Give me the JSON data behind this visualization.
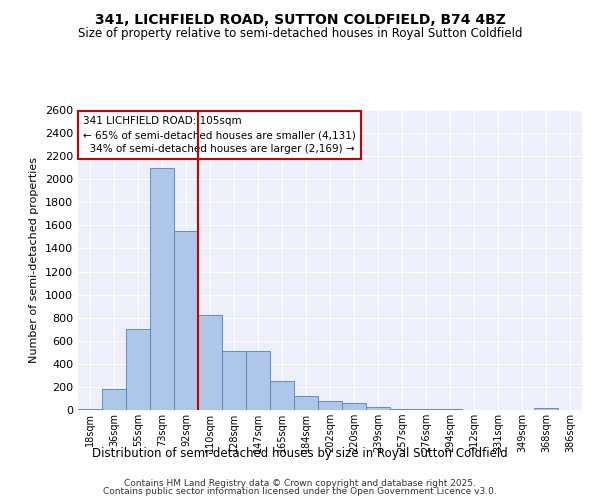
{
  "title": "341, LICHFIELD ROAD, SUTTON COLDFIELD, B74 4BZ",
  "subtitle": "Size of property relative to semi-detached houses in Royal Sutton Coldfield",
  "xlabel": "Distribution of semi-detached houses by size in Royal Sutton Coldfield",
  "ylabel": "Number of semi-detached properties",
  "property_label": "341 LICHFIELD ROAD: 105sqm",
  "pct_smaller": 65,
  "n_smaller": 4131,
  "pct_larger": 34,
  "n_larger": 2169,
  "bin_labels": [
    "18sqm",
    "36sqm",
    "55sqm",
    "73sqm",
    "92sqm",
    "110sqm",
    "128sqm",
    "147sqm",
    "165sqm",
    "184sqm",
    "202sqm",
    "220sqm",
    "239sqm",
    "257sqm",
    "276sqm",
    "294sqm",
    "312sqm",
    "331sqm",
    "349sqm",
    "368sqm",
    "386sqm"
  ],
  "bar_values": [
    10,
    180,
    700,
    2100,
    1550,
    820,
    510,
    510,
    250,
    125,
    80,
    65,
    30,
    10,
    5,
    5,
    0,
    0,
    0,
    15,
    0
  ],
  "bar_color": "#aec6e8",
  "bar_edge_color": "#5080c0",
  "vline_color": "#cc0000",
  "annotation_box_edge_color": "#cc0000",
  "ylim": [
    0,
    2600
  ],
  "yticks": [
    0,
    200,
    400,
    600,
    800,
    1000,
    1200,
    1400,
    1600,
    1800,
    2000,
    2200,
    2400,
    2600
  ],
  "background_color": "#edf0fb",
  "grid_color": "#ffffff",
  "footer_line1": "Contains HM Land Registry data © Crown copyright and database right 2025.",
  "footer_line2": "Contains public sector information licensed under the Open Government Licence v3.0."
}
